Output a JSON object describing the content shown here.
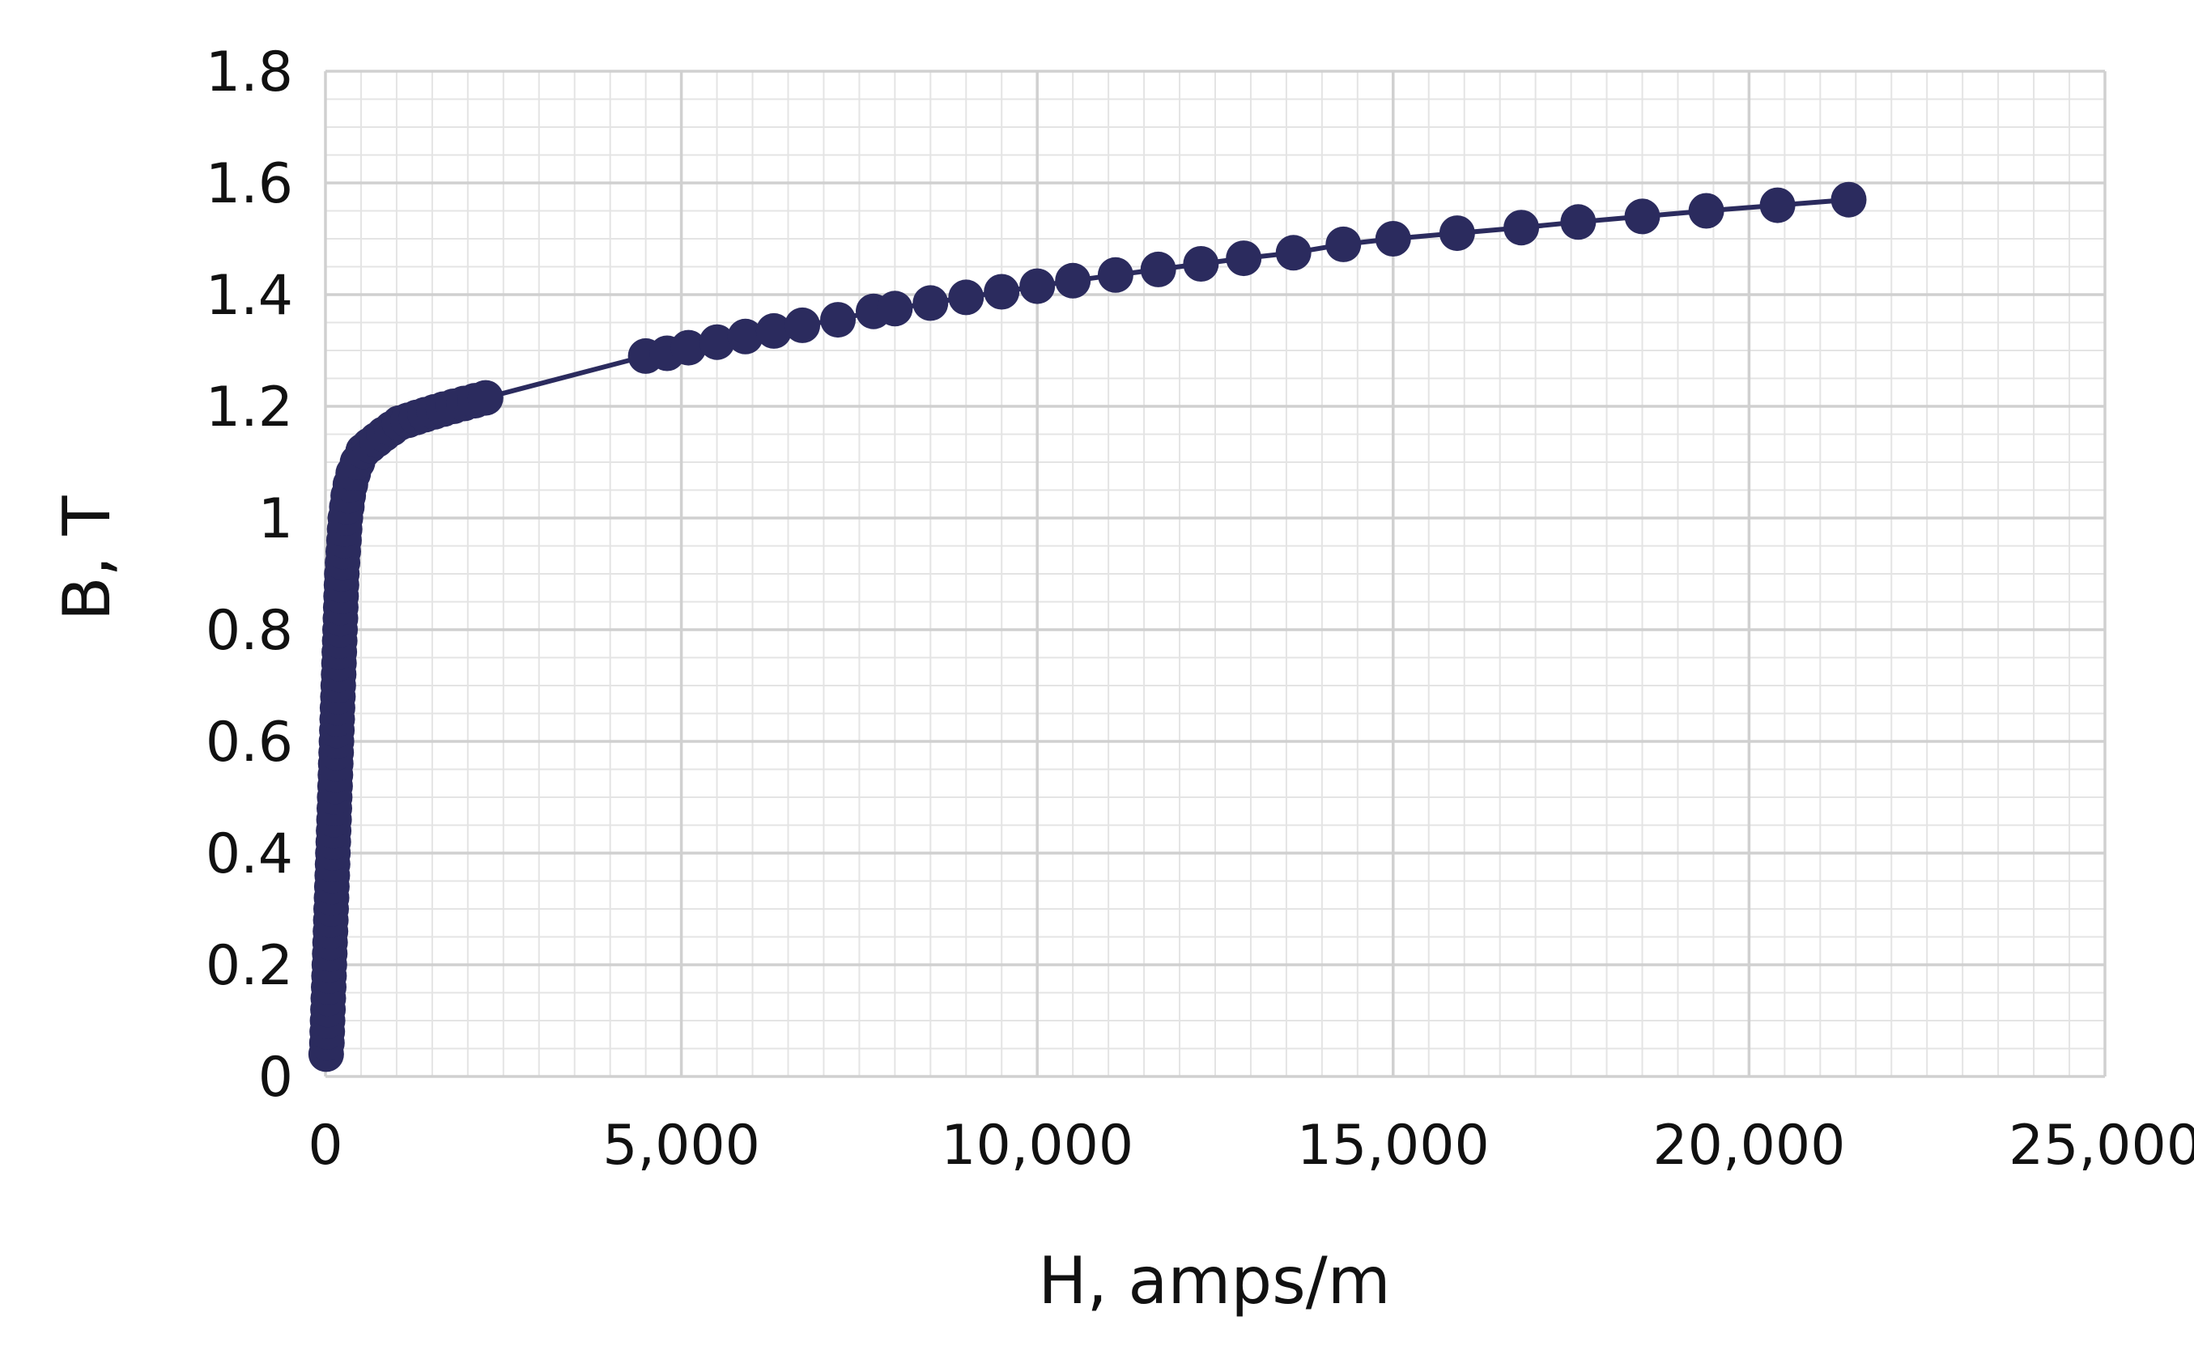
{
  "chart_data": {
    "type": "scatter",
    "title": "",
    "xlabel": "H, amps/m",
    "ylabel": "B, T",
    "xlim": [
      0,
      25000
    ],
    "ylim": [
      0,
      1.8
    ],
    "x_major_step": 5000,
    "x_minor_step": 500,
    "y_major_step": 0.2,
    "y_minor_step": 0.05,
    "x_tick_labels": [
      "0",
      "5,000",
      "10,000",
      "15,000",
      "20,000",
      "25,000"
    ],
    "y_tick_labels": [
      "0",
      "0.2",
      "0.4",
      "0.6",
      "0.8",
      "1",
      "1.2",
      "1.4",
      "1.6",
      "1.8"
    ],
    "grid": true,
    "legend": "none",
    "series": [
      {
        "color": "#2b2b5e",
        "marker": "circle",
        "line": true,
        "points": [
          [
            10,
            0.04
          ],
          [
            20,
            0.06
          ],
          [
            25,
            0.08
          ],
          [
            30,
            0.1
          ],
          [
            35,
            0.12
          ],
          [
            40,
            0.14
          ],
          [
            45,
            0.16
          ],
          [
            50,
            0.18
          ],
          [
            55,
            0.2
          ],
          [
            60,
            0.22
          ],
          [
            65,
            0.24
          ],
          [
            70,
            0.26
          ],
          [
            75,
            0.28
          ],
          [
            80,
            0.3
          ],
          [
            85,
            0.32
          ],
          [
            90,
            0.34
          ],
          [
            95,
            0.36
          ],
          [
            100,
            0.38
          ],
          [
            105,
            0.4
          ],
          [
            110,
            0.42
          ],
          [
            115,
            0.44
          ],
          [
            120,
            0.46
          ],
          [
            125,
            0.48
          ],
          [
            130,
            0.5
          ],
          [
            135,
            0.52
          ],
          [
            140,
            0.54
          ],
          [
            145,
            0.56
          ],
          [
            150,
            0.58
          ],
          [
            155,
            0.6
          ],
          [
            160,
            0.62
          ],
          [
            165,
            0.64
          ],
          [
            170,
            0.66
          ],
          [
            175,
            0.68
          ],
          [
            180,
            0.7
          ],
          [
            185,
            0.72
          ],
          [
            190,
            0.74
          ],
          [
            195,
            0.76
          ],
          [
            200,
            0.78
          ],
          [
            205,
            0.8
          ],
          [
            210,
            0.82
          ],
          [
            215,
            0.84
          ],
          [
            220,
            0.86
          ],
          [
            225,
            0.88
          ],
          [
            230,
            0.9
          ],
          [
            240,
            0.92
          ],
          [
            250,
            0.94
          ],
          [
            260,
            0.96
          ],
          [
            270,
            0.98
          ],
          [
            280,
            1.0
          ],
          [
            300,
            1.02
          ],
          [
            320,
            1.04
          ],
          [
            350,
            1.06
          ],
          [
            390,
            1.08
          ],
          [
            450,
            1.1
          ],
          [
            530,
            1.12
          ],
          [
            620,
            1.13
          ],
          [
            720,
            1.14
          ],
          [
            820,
            1.15
          ],
          [
            930,
            1.16
          ],
          [
            1040,
            1.17
          ],
          [
            1160,
            1.175
          ],
          [
            1280,
            1.18
          ],
          [
            1400,
            1.185
          ],
          [
            1530,
            1.19
          ],
          [
            1660,
            1.195
          ],
          [
            1800,
            1.2
          ],
          [
            1950,
            1.205
          ],
          [
            2100,
            1.21
          ],
          [
            2250,
            1.215
          ],
          [
            4500,
            1.29
          ],
          [
            4800,
            1.295
          ],
          [
            5100,
            1.305
          ],
          [
            5500,
            1.315
          ],
          [
            5900,
            1.325
          ],
          [
            6300,
            1.335
          ],
          [
            6700,
            1.345
          ],
          [
            7200,
            1.355
          ],
          [
            7700,
            1.37
          ],
          [
            8000,
            1.375
          ],
          [
            8500,
            1.385
          ],
          [
            9000,
            1.395
          ],
          [
            9500,
            1.405
          ],
          [
            10000,
            1.415
          ],
          [
            10500,
            1.425
          ],
          [
            11100,
            1.435
          ],
          [
            11700,
            1.445
          ],
          [
            12300,
            1.455
          ],
          [
            12900,
            1.465
          ],
          [
            13600,
            1.475
          ],
          [
            14300,
            1.49
          ],
          [
            15000,
            1.5
          ],
          [
            15900,
            1.51
          ],
          [
            16800,
            1.52
          ],
          [
            17600,
            1.53
          ],
          [
            18500,
            1.54
          ],
          [
            19400,
            1.55
          ],
          [
            20400,
            1.56
          ],
          [
            21400,
            1.57
          ]
        ]
      }
    ]
  }
}
